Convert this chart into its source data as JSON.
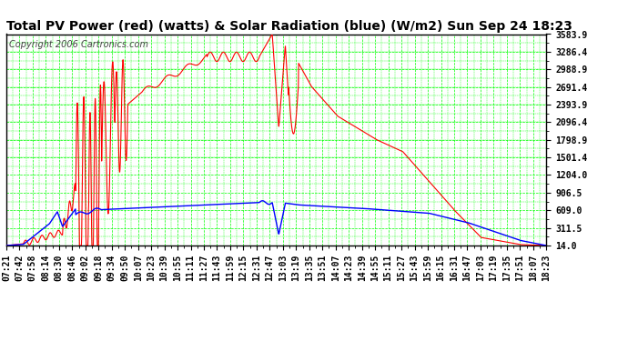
{
  "title": "Total PV Power (red) (watts) & Solar Radiation (blue) (W/m2) Sun Sep 24 18:23",
  "copyright": "Copyright 2006 Cartronics.com",
  "bg_color": "#ffffff",
  "plot_bg_color": "#ffffff",
  "grid_color": "#00ff00",
  "y_ticks": [
    14.0,
    311.5,
    609.0,
    906.5,
    1204.0,
    1501.4,
    1798.9,
    2096.4,
    2393.9,
    2691.4,
    2988.9,
    3286.4,
    3583.9
  ],
  "y_min": 14.0,
  "y_max": 3583.9,
  "x_labels": [
    "07:21",
    "07:42",
    "07:58",
    "08:14",
    "08:30",
    "08:46",
    "09:02",
    "09:18",
    "09:34",
    "09:50",
    "10:07",
    "10:23",
    "10:39",
    "10:55",
    "11:11",
    "11:27",
    "11:43",
    "11:59",
    "12:15",
    "12:31",
    "12:47",
    "13:03",
    "13:19",
    "13:35",
    "13:51",
    "14:07",
    "14:23",
    "14:39",
    "14:55",
    "15:11",
    "15:27",
    "15:43",
    "15:59",
    "16:15",
    "16:31",
    "16:47",
    "17:03",
    "17:19",
    "17:35",
    "17:51",
    "18:07",
    "18:23"
  ],
  "red_color": "#ff0000",
  "blue_color": "#0000ff",
  "title_fontsize": 10,
  "copyright_fontsize": 7,
  "tick_fontsize": 7,
  "title_color": "#000000",
  "axis_color": "#000000"
}
